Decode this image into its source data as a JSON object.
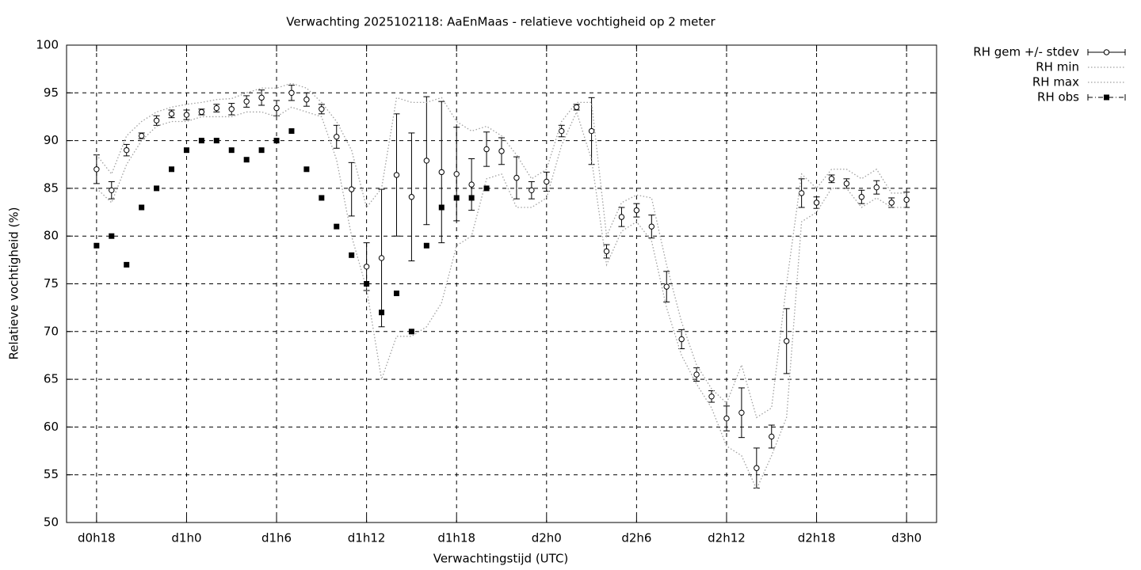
{
  "chart_data": {
    "type": "line",
    "title": "Verwachting 2025102118: AaEnMaas - relatieve vochtigheid op 2 meter",
    "xlabel": "Verwachtingstijd (UTC)",
    "ylabel": "Relatieve vochtigheid (%)",
    "x": [
      18,
      19,
      20,
      21,
      22,
      23,
      24,
      25,
      26,
      27,
      28,
      29,
      30,
      31,
      32,
      33,
      34,
      35,
      36,
      37,
      38,
      39,
      40,
      41,
      42,
      43,
      44,
      45,
      46,
      47,
      48,
      49,
      50,
      51,
      52,
      53,
      54,
      55,
      56,
      57,
      58,
      59,
      60,
      61,
      62,
      63,
      64,
      65,
      66,
      67,
      68,
      69,
      70,
      71,
      72
    ],
    "xlim": [
      16,
      74
    ],
    "xticks": [
      {
        "value": 18,
        "label": "d0h18"
      },
      {
        "value": 24,
        "label": "d1h0"
      },
      {
        "value": 30,
        "label": "d1h6"
      },
      {
        "value": 36,
        "label": "d1h12"
      },
      {
        "value": 42,
        "label": "d1h18"
      },
      {
        "value": 48,
        "label": "d2h0"
      },
      {
        "value": 54,
        "label": "d2h6"
      },
      {
        "value": 60,
        "label": "d2h12"
      },
      {
        "value": 66,
        "label": "d2h18"
      },
      {
        "value": 72,
        "label": "d3h0"
      }
    ],
    "ylim": [
      50,
      100
    ],
    "yticks": [
      50,
      55,
      60,
      65,
      70,
      75,
      80,
      85,
      90,
      95,
      100
    ],
    "grid": true,
    "legend": "outside-right-top",
    "series": [
      {
        "name": "RH gem +/- stdev",
        "color": "#000000",
        "style": "errorbars",
        "values": [
          87.0,
          84.8,
          89.0,
          90.5,
          92.1,
          92.8,
          92.7,
          93.0,
          93.4,
          93.3,
          94.1,
          94.5,
          93.4,
          95.0,
          94.3,
          93.3,
          90.4,
          84.9,
          76.8,
          77.7,
          86.4,
          84.1,
          87.9,
          86.7,
          86.5,
          85.4,
          89.1,
          88.9,
          86.1,
          84.8,
          85.7,
          91.0,
          93.5,
          91.0,
          78.4,
          82.0,
          82.7,
          81.0,
          74.7,
          69.2,
          65.5,
          63.2,
          60.9,
          61.5,
          55.7,
          59.0,
          69.0,
          84.5,
          83.5,
          86.0,
          85.5,
          84.1,
          85.1,
          83.5,
          83.8
        ],
        "errors": [
          1.5,
          0.9,
          0.6,
          0.3,
          0.5,
          0.4,
          0.5,
          0.3,
          0.4,
          0.6,
          0.6,
          0.8,
          0.8,
          0.8,
          0.7,
          0.5,
          1.2,
          2.8,
          2.5,
          7.2,
          6.4,
          6.7,
          6.7,
          7.4,
          4.9,
          2.7,
          1.8,
          1.4,
          2.2,
          0.9,
          1.0,
          0.6,
          0.3,
          3.5,
          0.7,
          1.0,
          0.7,
          1.2,
          1.6,
          1.0,
          0.7,
          0.6,
          1.3,
          2.6,
          2.1,
          1.2,
          3.4,
          1.5,
          0.6,
          0.4,
          0.5,
          0.7,
          0.7,
          0.5,
          0.8
        ]
      },
      {
        "name": "RH min",
        "color": "#a0a0a0",
        "style": "dots",
        "values": [
          85,
          83.5,
          87.5,
          90,
          91.5,
          92,
          92,
          92.5,
          92.5,
          92.5,
          93,
          93,
          92.5,
          93.5,
          93,
          92.5,
          88,
          80,
          74.5,
          65,
          69.5,
          69.5,
          70.5,
          73,
          79,
          80,
          86,
          86.5,
          83,
          83,
          84,
          89.5,
          93,
          88,
          77,
          80.5,
          81.5,
          79.5,
          72.5,
          67.5,
          64.5,
          62,
          58,
          57,
          53.5,
          57,
          61,
          81.5,
          82.5,
          85,
          85,
          83,
          84,
          83,
          83
        ]
      },
      {
        "name": "RH max",
        "color": "#a0a0a0",
        "style": "dots",
        "values": [
          88.5,
          86.5,
          90.5,
          92,
          93,
          93.5,
          93.8,
          94,
          94.3,
          94.4,
          95,
          95.5,
          95.5,
          96,
          95.5,
          94,
          92,
          89,
          83,
          85,
          94.5,
          94,
          94,
          94.5,
          92,
          91,
          91.5,
          90.5,
          88.5,
          86,
          87,
          92,
          94,
          94,
          80,
          83.5,
          84.3,
          84,
          77,
          71,
          66.5,
          64,
          62.5,
          66.5,
          61,
          62,
          75,
          86.5,
          85,
          87,
          87,
          86,
          87,
          84.5,
          84.5
        ]
      },
      {
        "name": "RH obs",
        "color": "#000000",
        "style": "points",
        "values": [
          79,
          80,
          77,
          83,
          85,
          87,
          89,
          90,
          90,
          89,
          88,
          89,
          90,
          91,
          87,
          84,
          81,
          78,
          75,
          72,
          74,
          70,
          79,
          83,
          84,
          84,
          85,
          null,
          null,
          null,
          null,
          null,
          null,
          null,
          null,
          null,
          null,
          null,
          null,
          null,
          null,
          null,
          null,
          null,
          null,
          null,
          null,
          null,
          null,
          null,
          null,
          null,
          null,
          null,
          null
        ]
      }
    ]
  }
}
